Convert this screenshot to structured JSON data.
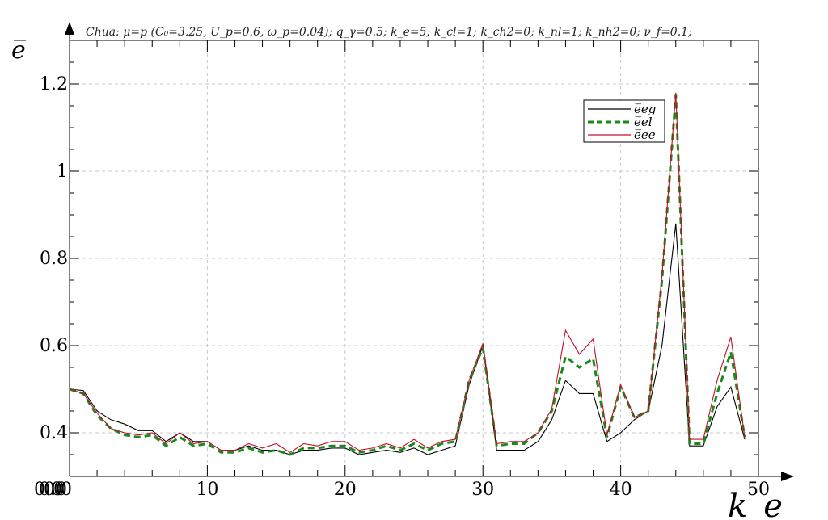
{
  "chart_data": {
    "type": "line",
    "title": "Chua: μ=p (C₀=3.25, U_p=0.6, ω_p=0.04);      q_γ=0.5; k_e=5; k_cl=1; k_ch2=0; k_nl=1; k_nh2=0; ν_f=0.1;",
    "xlabel": "k_e",
    "ylabel": "e̅",
    "xlim": [
      0,
      50
    ],
    "ylim": [
      0.3,
      1.3
    ],
    "x_ticks": [
      0,
      10,
      20,
      30,
      40,
      50
    ],
    "x_tick_labels": [
      "0",
      "10",
      "20",
      "30",
      "40",
      "50"
    ],
    "x_origin_label_overlap": [
      "0.0",
      "0.0",
      "0.0"
    ],
    "y_ticks": [
      0.4,
      0.6,
      0.8,
      1.0,
      1.2
    ],
    "y_tick_labels": [
      "0.4",
      "0.6",
      "0.8",
      "1",
      "1.2"
    ],
    "grid": true,
    "legend_position": "top-right",
    "x": [
      0,
      1,
      2,
      3,
      4,
      5,
      6,
      7,
      8,
      9,
      10,
      11,
      12,
      13,
      14,
      15,
      16,
      17,
      18,
      19,
      20,
      21,
      22,
      23,
      24,
      25,
      26,
      27,
      28,
      29,
      30,
      31,
      32,
      33,
      34,
      35,
      36,
      37,
      38,
      39,
      40,
      41,
      42,
      43,
      44,
      45,
      46,
      47,
      48,
      49
    ],
    "series": [
      {
        "name": "e_eg",
        "color": "#000000",
        "style": "solid",
        "values": [
          0.5,
          0.497,
          0.45,
          0.43,
          0.42,
          0.405,
          0.405,
          0.38,
          0.4,
          0.38,
          0.38,
          0.36,
          0.36,
          0.37,
          0.36,
          0.36,
          0.35,
          0.36,
          0.36,
          0.365,
          0.365,
          0.35,
          0.355,
          0.36,
          0.355,
          0.365,
          0.35,
          0.36,
          0.37,
          0.51,
          0.6,
          0.36,
          0.36,
          0.36,
          0.38,
          0.43,
          0.52,
          0.49,
          0.49,
          0.38,
          0.4,
          0.43,
          0.45,
          0.6,
          0.88,
          0.37,
          0.37,
          0.46,
          0.505,
          0.385
        ]
      },
      {
        "name": "e_el",
        "color": "#1a8a1a",
        "style": "dashed",
        "values": [
          0.5,
          0.49,
          0.44,
          0.41,
          0.395,
          0.39,
          0.395,
          0.37,
          0.39,
          0.37,
          0.375,
          0.355,
          0.355,
          0.365,
          0.355,
          0.36,
          0.35,
          0.365,
          0.365,
          0.37,
          0.37,
          0.355,
          0.36,
          0.37,
          0.36,
          0.375,
          0.36,
          0.375,
          0.38,
          0.52,
          0.595,
          0.37,
          0.375,
          0.375,
          0.4,
          0.45,
          0.575,
          0.55,
          0.57,
          0.39,
          0.505,
          0.435,
          0.45,
          0.75,
          1.175,
          0.375,
          0.375,
          0.49,
          0.585,
          0.39
        ]
      },
      {
        "name": "e_ee",
        "color": "#c0102a",
        "style": "solid",
        "values": [
          0.5,
          0.49,
          0.445,
          0.41,
          0.4,
          0.395,
          0.4,
          0.375,
          0.4,
          0.375,
          0.38,
          0.36,
          0.36,
          0.375,
          0.365,
          0.375,
          0.355,
          0.375,
          0.37,
          0.38,
          0.38,
          0.36,
          0.365,
          0.375,
          0.365,
          0.385,
          0.365,
          0.38,
          0.385,
          0.52,
          0.605,
          0.375,
          0.38,
          0.38,
          0.4,
          0.455,
          0.635,
          0.58,
          0.615,
          0.395,
          0.51,
          0.435,
          0.45,
          0.76,
          1.18,
          0.385,
          0.385,
          0.52,
          0.62,
          0.39
        ]
      }
    ]
  },
  "legend_labels": [
    "e̅eg",
    "e̅el",
    "e̅ee"
  ]
}
